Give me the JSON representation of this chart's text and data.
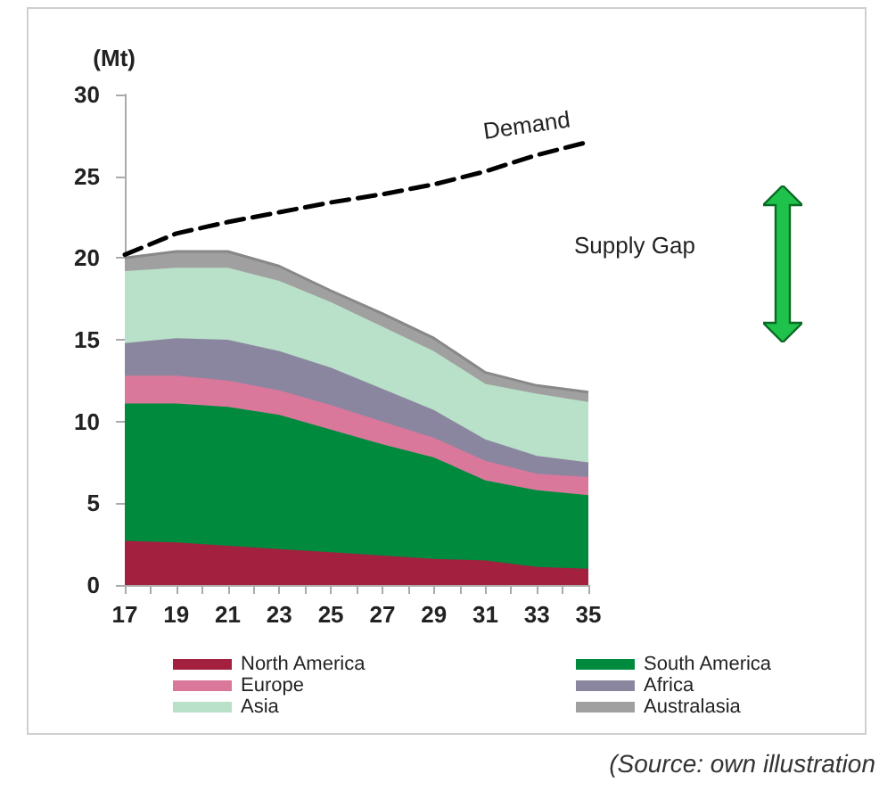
{
  "chart_data": {
    "type": "area",
    "stacked": true,
    "ylabel": "(Mt)",
    "x": [
      17,
      19,
      21,
      23,
      25,
      27,
      29,
      31,
      33,
      35
    ],
    "xlim": [
      17,
      35
    ],
    "xticks": [
      17,
      {
        "value": 18,
        "label": null
      },
      19,
      {
        "value": 20,
        "label": null
      },
      21,
      {
        "value": 22,
        "label": null
      },
      23,
      {
        "value": 24,
        "label": null
      },
      25,
      {
        "value": 26,
        "label": null
      },
      27,
      {
        "value": 28,
        "label": null
      },
      29,
      {
        "value": 30,
        "label": null
      },
      31,
      {
        "value": 32,
        "label": null
      },
      33,
      {
        "value": 34,
        "label": null
      },
      35
    ],
    "ylim": [
      0,
      30
    ],
    "yticks": [
      0,
      5,
      10,
      15,
      20,
      25,
      30
    ],
    "grid": false,
    "legend": "bottom",
    "series": [
      {
        "name": "North America",
        "color": "#a3213f",
        "values": [
          2.7,
          2.6,
          2.4,
          2.2,
          2.0,
          1.8,
          1.6,
          1.5,
          1.1,
          1.0
        ]
      },
      {
        "name": "South America",
        "color": "#008a3e",
        "values": [
          8.4,
          8.5,
          8.5,
          8.2,
          7.5,
          6.8,
          6.2,
          4.9,
          4.7,
          4.5
        ]
      },
      {
        "name": "Europe",
        "color": "#d9789a",
        "values": [
          1.7,
          1.7,
          1.6,
          1.5,
          1.5,
          1.4,
          1.2,
          1.2,
          1.0,
          1.1
        ]
      },
      {
        "name": "Africa",
        "color": "#8b86a0",
        "values": [
          2.0,
          2.3,
          2.5,
          2.4,
          2.3,
          2.0,
          1.7,
          1.3,
          1.1,
          0.9
        ]
      },
      {
        "name": "Asia",
        "color": "#b9e0c8",
        "values": [
          4.4,
          4.3,
          4.4,
          4.3,
          4.0,
          3.8,
          3.6,
          3.4,
          3.8,
          3.7
        ]
      },
      {
        "name": "Australasia",
        "color": "#a0a0a0",
        "values": [
          0.8,
          1.0,
          1.0,
          0.9,
          0.7,
          0.8,
          0.8,
          0.7,
          0.5,
          0.6
        ]
      },
      {
        "name": "Demand",
        "type": "line",
        "color": "#000000",
        "line_style": "dashed",
        "values": [
          20.2,
          21.5,
          22.2,
          22.8,
          23.4,
          23.9,
          24.5,
          25.3,
          26.3,
          27.1
        ]
      }
    ],
    "annotations": [
      "Supply Gap",
      "(Source: own illustration"
    ]
  }
}
